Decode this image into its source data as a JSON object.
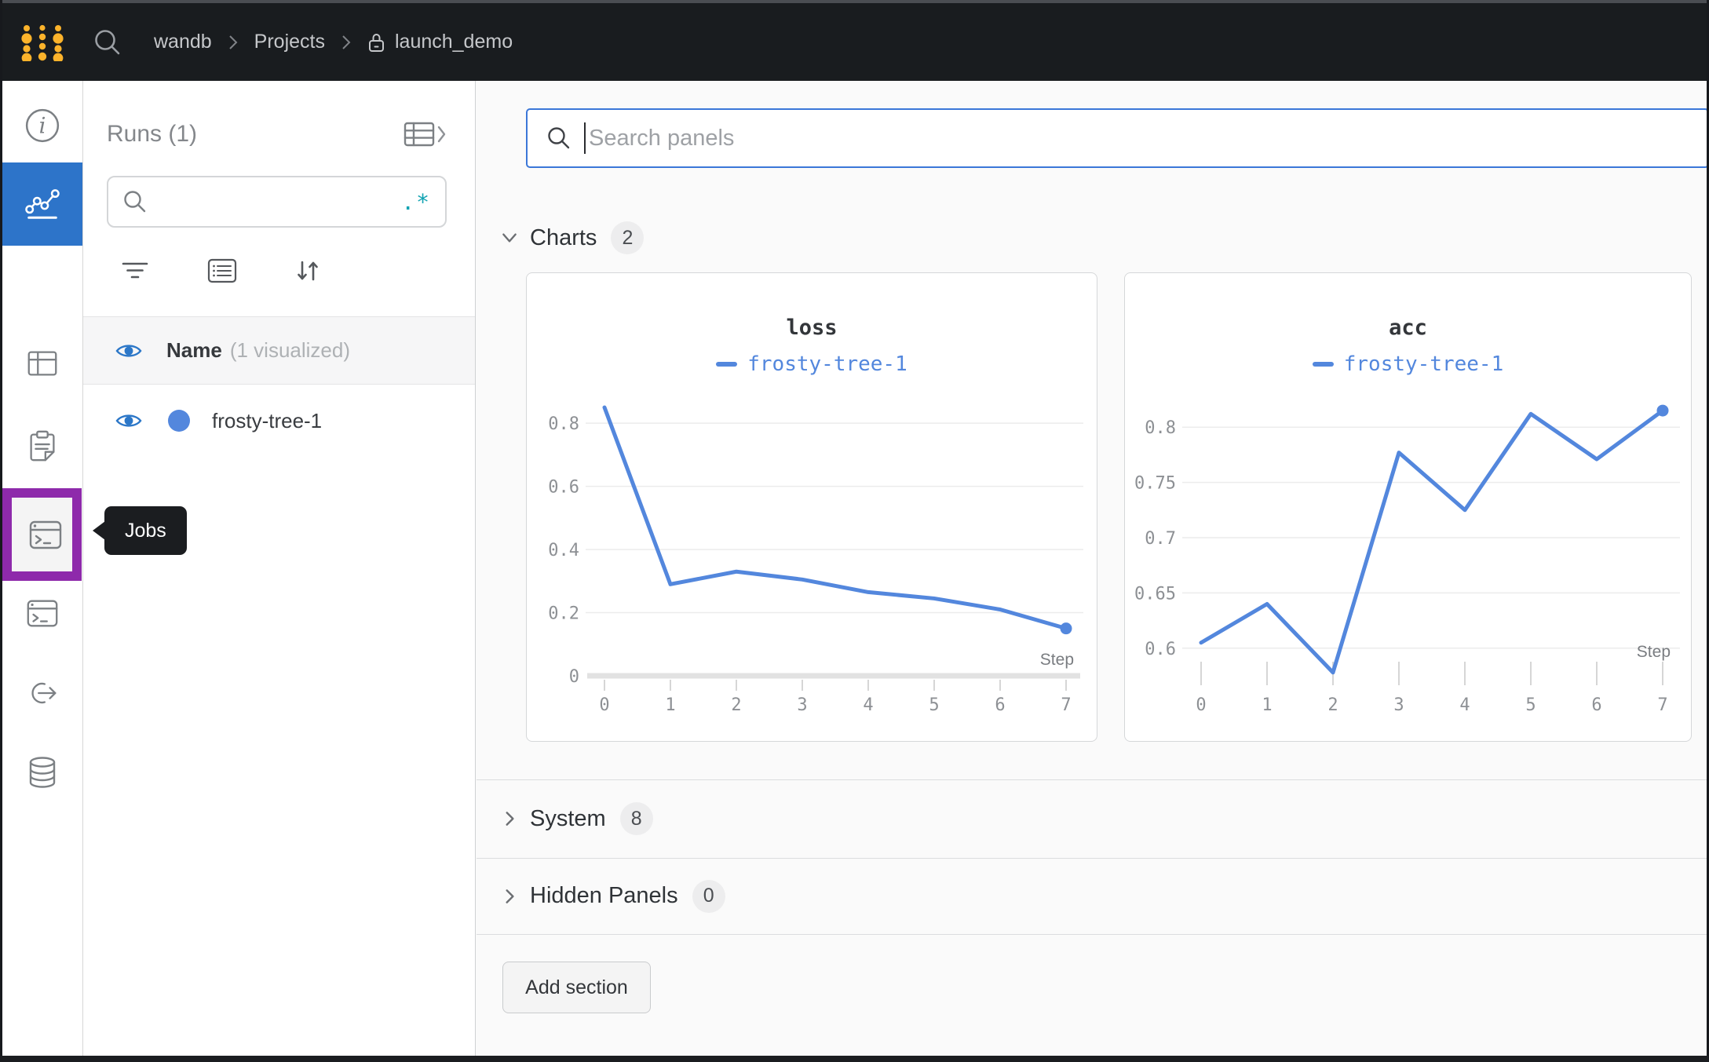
{
  "topbar": {
    "breadcrumb": [
      "wandb",
      "Projects",
      "launch_demo"
    ]
  },
  "sidebar": {
    "items": [
      {
        "icon": "info-icon",
        "active": false
      },
      {
        "icon": "workspace-chart-icon",
        "active": true
      },
      {
        "icon": "table-icon",
        "active": false
      },
      {
        "icon": "clipboard-icon",
        "active": false
      },
      {
        "icon": "broom-icon",
        "active": false
      },
      {
        "icon": "jobs-terminal-icon",
        "active": false,
        "highlighted": true
      },
      {
        "icon": "launch-link-icon",
        "active": false
      },
      {
        "icon": "database-icon",
        "active": false
      }
    ],
    "tooltip": "Jobs",
    "highlight_color": "#8e2aab",
    "active_color": "#2d74c9"
  },
  "runs_panel": {
    "title": "Runs (1)",
    "search_value": "",
    "regex_icon": ".*",
    "header_name": "Name",
    "header_suffix": "(1 visualized)",
    "runs": [
      {
        "name": "frosty-tree-1",
        "color": "#5387dd",
        "visible": true
      }
    ]
  },
  "main": {
    "panel_search": {
      "placeholder": "Search panels",
      "value": ""
    },
    "sections": [
      {
        "label": "Charts",
        "count": "2",
        "expanded": true
      },
      {
        "label": "System",
        "count": "8",
        "expanded": false
      },
      {
        "label": "Hidden Panels",
        "count": "0",
        "expanded": false
      }
    ],
    "add_section_label": "Add section"
  },
  "colors": {
    "accent_blue": "#2d74c9",
    "run_blue": "#5387dd",
    "eye_blue": "#2c77c8",
    "regex_teal": "#10a3b2",
    "highlight_purple": "#8e2aab",
    "logo_gold": "#fcb32b"
  },
  "chart_data": [
    {
      "type": "line",
      "title": "loss",
      "legend": "frosty-tree-1",
      "xlabel": "Step",
      "x": [
        0,
        1,
        2,
        3,
        4,
        5,
        6,
        7
      ],
      "values": [
        0.85,
        0.29,
        0.33,
        0.305,
        0.265,
        0.245,
        0.21,
        0.15
      ],
      "xlim": [
        0,
        7
      ],
      "ylim": [
        0,
        0.875
      ],
      "yticks": [
        0,
        0.2,
        0.4,
        0.6,
        0.8
      ],
      "xticks": [
        0,
        1,
        2,
        3,
        4,
        5,
        6,
        7
      ],
      "line_color": "#5387dd",
      "grid": true,
      "legend_position": "top",
      "end_marker": true
    },
    {
      "type": "line",
      "title": "acc",
      "legend": "frosty-tree-1",
      "xlabel": "Step",
      "x": [
        0,
        1,
        2,
        3,
        4,
        5,
        6,
        7
      ],
      "values": [
        0.605,
        0.64,
        0.578,
        0.777,
        0.725,
        0.812,
        0.771,
        0.815
      ],
      "xlim": [
        0,
        7
      ],
      "ylim": [
        0.575,
        0.825
      ],
      "yticks": [
        0.6,
        0.65,
        0.7,
        0.75,
        0.8
      ],
      "xticks": [
        0,
        1,
        2,
        3,
        4,
        5,
        6,
        7
      ],
      "line_color": "#5387dd",
      "grid": true,
      "legend_position": "top",
      "end_marker": true
    }
  ]
}
